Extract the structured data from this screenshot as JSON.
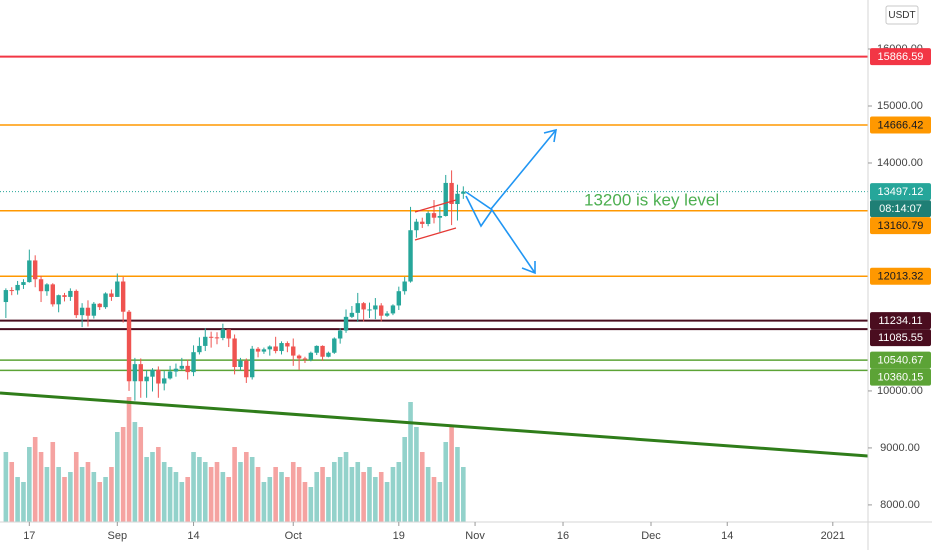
{
  "chart_data": {
    "type": "candlestick",
    "currency": "USDT",
    "annotation": "13200 is key level",
    "countdown": "08:14:07",
    "up_color": "#26a69a",
    "down_color": "#ef5350",
    "volume_up_color": "#93d2cb",
    "volume_down_color": "#f5a3a1",
    "x": [
      "2020-08-13",
      "2020-08-14",
      "2020-08-15",
      "2020-08-16",
      "2020-08-17",
      "2020-08-18",
      "2020-08-19",
      "2020-08-20",
      "2020-08-21",
      "2020-08-22",
      "2020-08-23",
      "2020-08-24",
      "2020-08-25",
      "2020-08-26",
      "2020-08-27",
      "2020-08-28",
      "2020-08-29",
      "2020-08-30",
      "2020-08-31",
      "2020-09-01",
      "2020-09-02",
      "2020-09-03",
      "2020-09-04",
      "2020-09-05",
      "2020-09-06",
      "2020-09-07",
      "2020-09-08",
      "2020-09-09",
      "2020-09-10",
      "2020-09-11",
      "2020-09-12",
      "2020-09-13",
      "2020-09-14",
      "2020-09-15",
      "2020-09-16",
      "2020-09-17",
      "2020-09-18",
      "2020-09-19",
      "2020-09-20",
      "2020-09-21",
      "2020-09-22",
      "2020-09-23",
      "2020-09-24",
      "2020-09-25",
      "2020-09-26",
      "2020-09-27",
      "2020-09-28",
      "2020-09-29",
      "2020-09-30",
      "2020-10-01",
      "2020-10-02",
      "2020-10-03",
      "2020-10-04",
      "2020-10-05",
      "2020-10-06",
      "2020-10-07",
      "2020-10-08",
      "2020-10-09",
      "2020-10-10",
      "2020-10-11",
      "2020-10-12",
      "2020-10-13",
      "2020-10-14",
      "2020-10-15",
      "2020-10-16",
      "2020-10-17",
      "2020-10-18",
      "2020-10-19",
      "2020-10-20",
      "2020-10-21",
      "2020-10-22",
      "2020-10-23",
      "2020-10-24",
      "2020-10-25",
      "2020-10-26",
      "2020-10-27",
      "2020-10-28",
      "2020-10-29",
      "2020-10-30"
    ],
    "open": [
      11560,
      11770,
      11765,
      11860,
      11910,
      12290,
      11960,
      11750,
      11870,
      11520,
      11680,
      11650,
      11755,
      11330,
      11460,
      11320,
      11530,
      11470,
      11710,
      11650,
      11920,
      11390,
      10170,
      10470,
      10170,
      10250,
      10370,
      10130,
      10220,
      10340,
      10390,
      10440,
      10330,
      10680,
      10790,
      10950,
      10940,
      10930,
      11080,
      10920,
      10420,
      10530,
      10240,
      10740,
      10690,
      10730,
      10780,
      10700,
      10840,
      10780,
      10620,
      10570,
      10550,
      10670,
      10790,
      10600,
      10670,
      10920,
      11060,
      11300,
      11370,
      11540,
      11430,
      11430,
      11500,
      11320,
      11360,
      11500,
      11750,
      11920,
      12820,
      12970,
      12930,
      13120,
      13040,
      13070,
      13650,
      13280,
      13460
    ],
    "high": [
      11800,
      11820,
      11930,
      11960,
      12480,
      12380,
      12020,
      11890,
      11890,
      11690,
      11720,
      11800,
      11780,
      11540,
      11590,
      11560,
      11540,
      11730,
      11780,
      12060,
      12000,
      11420,
      10580,
      10570,
      10360,
      10400,
      10430,
      10350,
      10440,
      10480,
      10580,
      10550,
      10800,
      10940,
      11100,
      11040,
      11030,
      11180,
      11050,
      10990,
      10580,
      10570,
      10790,
      10770,
      10760,
      10800,
      10950,
      10870,
      10870,
      10920,
      10640,
      10600,
      10690,
      10800,
      10800,
      10690,
      10940,
      11100,
      11430,
      11490,
      11720,
      11560,
      11550,
      11630,
      11540,
      11400,
      11520,
      11830,
      12000,
      13230,
      13020,
      13040,
      13150,
      13350,
      13230,
      13790,
      13870,
      13620,
      13590
    ],
    "low": [
      11280,
      11680,
      11690,
      11790,
      11900,
      11820,
      11560,
      11670,
      11480,
      11380,
      11570,
      11580,
      11280,
      11120,
      11130,
      11270,
      11420,
      11440,
      11580,
      11650,
      11200,
      10000,
      9830,
      9880,
      9880,
      9990,
      9880,
      10010,
      10200,
      10250,
      10360,
      10200,
      10260,
      10640,
      10700,
      10760,
      10820,
      10890,
      10770,
      10290,
      10360,
      10140,
      10200,
      10590,
      10650,
      10620,
      10660,
      10640,
      10680,
      10440,
      10370,
      10490,
      10520,
      10630,
      10530,
      10590,
      10650,
      10830,
      11020,
      11280,
      11210,
      11220,
      11280,
      11260,
      11220,
      11300,
      11330,
      11420,
      11690,
      11900,
      12690,
      12860,
      12890,
      12940,
      12790,
      13060,
      12910,
      12990,
      13370
    ],
    "close": [
      11770,
      11765,
      11860,
      11910,
      12290,
      11960,
      11750,
      11870,
      11520,
      11680,
      11650,
      11755,
      11330,
      11460,
      11320,
      11530,
      11470,
      11710,
      11650,
      11920,
      11390,
      10170,
      10470,
      10170,
      10250,
      10370,
      10130,
      10220,
      10340,
      10390,
      10440,
      10330,
      10680,
      10790,
      10950,
      10940,
      10930,
      11080,
      10920,
      10420,
      10530,
      10240,
      10740,
      10690,
      10730,
      10780,
      10700,
      10840,
      10780,
      10620,
      10570,
      10550,
      10670,
      10790,
      10600,
      10670,
      10920,
      11060,
      11300,
      11370,
      11540,
      11430,
      11430,
      11500,
      11320,
      11360,
      11500,
      11750,
      11920,
      12820,
      12970,
      12930,
      13120,
      13040,
      13070,
      13650,
      13280,
      13460,
      13497.12
    ],
    "volume": [
      70,
      60,
      45,
      40,
      75,
      85,
      70,
      55,
      80,
      55,
      45,
      50,
      70,
      55,
      60,
      50,
      40,
      45,
      55,
      90,
      95,
      125,
      100,
      95,
      65,
      70,
      75,
      60,
      55,
      50,
      40,
      45,
      70,
      65,
      60,
      55,
      60,
      50,
      45,
      75,
      60,
      70,
      65,
      55,
      40,
      45,
      55,
      50,
      45,
      60,
      55,
      40,
      35,
      50,
      55,
      45,
      60,
      65,
      70,
      55,
      60,
      50,
      55,
      45,
      50,
      40,
      55,
      60,
      85,
      120,
      95,
      70,
      55,
      45,
      40,
      80,
      95,
      75,
      55
    ],
    "volume_lim": [
      0,
      130
    ],
    "xlim": [
      "2020-08-12",
      "2021-01-07"
    ],
    "xticks": [
      {
        "value": "2020-08-17",
        "label": "17"
      },
      {
        "value": "2020-09-01",
        "label": "Sep"
      },
      {
        "value": "2020-09-14",
        "label": "14"
      },
      {
        "value": "2020-10-01",
        "label": "Oct"
      },
      {
        "value": "2020-10-19",
        "label": "19"
      },
      {
        "value": "2020-11-01",
        "label": "Nov"
      },
      {
        "value": "2020-11-16",
        "label": "16"
      },
      {
        "value": "2020-12-01",
        "label": "Dec"
      },
      {
        "value": "2020-12-14",
        "label": "14"
      },
      {
        "value": "2021-01-01",
        "label": "2021"
      }
    ],
    "ylim": [
      7700,
      16860
    ],
    "yticks": [
      {
        "value": 8000,
        "label": "8000.00"
      },
      {
        "value": 9000,
        "label": "9000.00"
      },
      {
        "value": 10000,
        "label": "10000.00"
      },
      {
        "value": 14000,
        "label": "14000.00"
      },
      {
        "value": 15000,
        "label": "15000.00"
      },
      {
        "value": 16000,
        "label": "16000.00"
      }
    ],
    "grid": false,
    "current_price": {
      "value": 13497.12,
      "color": "#26a69a"
    },
    "levels": [
      {
        "value": 15866.59,
        "color": "#f23645"
      },
      {
        "value": 14666.42,
        "color": "#ff9800"
      },
      {
        "value": 13160.79,
        "color": "#ff9800"
      },
      {
        "value": 12013.32,
        "color": "#ff9800"
      },
      {
        "value": 11234.11,
        "color": "#4a0d1f"
      },
      {
        "value": 11085.55,
        "color": "#4a0d1f"
      },
      {
        "value": 10540.67,
        "color": "#5ca336"
      },
      {
        "value": 10360.15,
        "color": "#5ca336"
      }
    ]
  }
}
